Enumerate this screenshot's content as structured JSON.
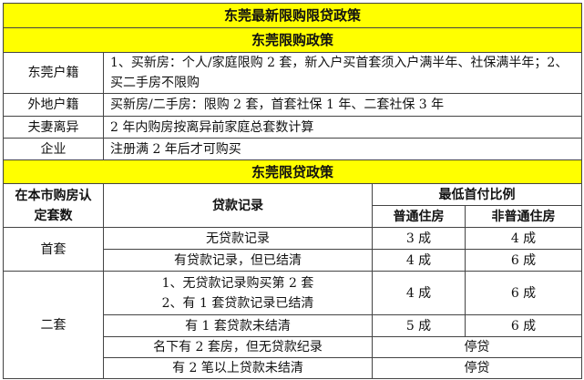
{
  "title": "东莞最新限购限贷政策",
  "purchase": {
    "heading": "东莞限购政策",
    "rows": [
      {
        "label": "东莞户籍",
        "text": "1、买新房：个人/家庭限购 2 套，新入户买首套须入户满半年、社保满半年；2、买二手房不限购"
      },
      {
        "label": "外地户籍",
        "text": "买新房/二手房：限购 2 套，首套社保 1 年、二套社保 3 年"
      },
      {
        "label": "夫妻离异",
        "text": "2 年内购房按离异前家庭总套数计算"
      },
      {
        "label": "企业",
        "text": "注册满 2 年后才可购买"
      }
    ]
  },
  "loan": {
    "heading": "东莞限贷政策",
    "headers": {
      "count": "在本市购房认定套数",
      "record": "贷款记录",
      "ratio": "最低首付比例",
      "ordinary": "普通住房",
      "non_ordinary": "非普通住房"
    },
    "first": {
      "label": "首套",
      "rows": [
        {
          "record": "无贷款记录",
          "ordinary": "3 成",
          "non_ordinary": "4 成"
        },
        {
          "record": "有贷款记录，但已结清",
          "ordinary": "4 成",
          "non_ordinary": "6 成"
        }
      ]
    },
    "second": {
      "label": "二套",
      "rows": [
        {
          "record_line1": "1、无贷款记录购买第 2 套",
          "record_line2": "2、有 1 套贷款记录已结清",
          "ordinary": "4 成",
          "non_ordinary": "6 成"
        },
        {
          "record": "有 1 套贷款未结清",
          "ordinary": "5 成",
          "non_ordinary": "6 成"
        },
        {
          "record": "名下有 2 套房，但无贷款纪录",
          "merged": "停贷"
        },
        {
          "record": "有 2 笔以上贷款未结清",
          "merged": "停贷"
        }
      ]
    }
  },
  "colors": {
    "header_bg": "#ffff00",
    "border": "#444444"
  }
}
